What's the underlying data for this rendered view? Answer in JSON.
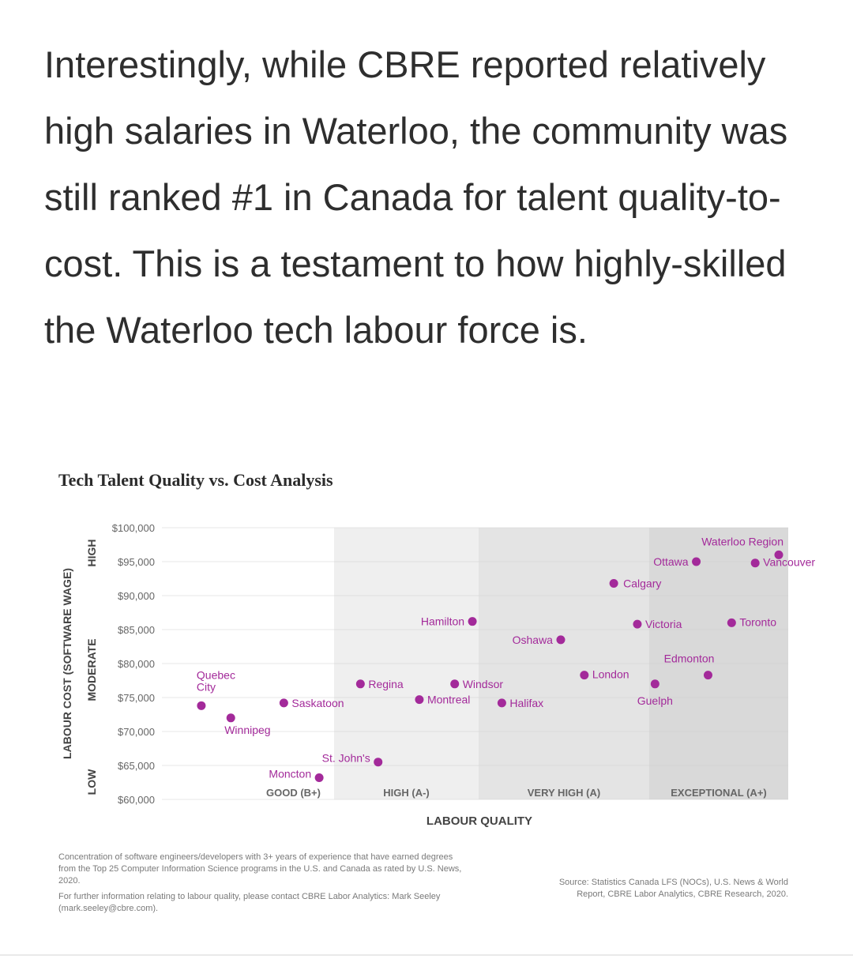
{
  "article": {
    "paragraph": "Interestingly, while CBRE reported relatively high salaries in Waterloo, the community was still ranked #1 in Canada for talent quality-to-cost. This is a testament to how highly-skilled the Waterloo tech labour force is."
  },
  "chart_data": {
    "type": "scatter",
    "title": "Tech Talent Quality vs. Cost Analysis",
    "xlabel": "LABOUR QUALITY",
    "ylabel": "LABOUR COST (SOFTWARE WAGE)",
    "x_categories": [
      "GOOD (B+)",
      "HIGH (A-)",
      "VERY HIGH (A)",
      "EXCEPTIONAL (A+)"
    ],
    "x_range": [
      0,
      10
    ],
    "y_tier_labels": [
      "HIGH",
      "MODERATE",
      "LOW"
    ],
    "y_ticks": [
      "$60,000",
      "$65,000",
      "$70,000",
      "$75,000",
      "$80,000",
      "$85,000",
      "$90,000",
      "$95,000",
      "$100,000"
    ],
    "ylim": [
      60000,
      100000
    ],
    "point_color": "#a32a9a",
    "points": [
      {
        "name": "Quebec City",
        "x": 0.2,
        "y": 73800
      },
      {
        "name": "Winnipeg",
        "x": 0.7,
        "y": 72000
      },
      {
        "name": "Saskatoon",
        "x": 1.6,
        "y": 74200
      },
      {
        "name": "Regina",
        "x": 2.9,
        "y": 77000
      },
      {
        "name": "Moncton",
        "x": 2.2,
        "y": 63200
      },
      {
        "name": "St. John's",
        "x": 3.2,
        "y": 65500
      },
      {
        "name": "Hamilton",
        "x": 4.8,
        "y": 86200
      },
      {
        "name": "Oshawa",
        "x": 6.3,
        "y": 83500
      },
      {
        "name": "Windsor",
        "x": 4.5,
        "y": 77000
      },
      {
        "name": "Montreal",
        "x": 3.9,
        "y": 74700
      },
      {
        "name": "Halifax",
        "x": 5.3,
        "y": 74200
      },
      {
        "name": "London",
        "x": 6.7,
        "y": 78300
      },
      {
        "name": "Calgary",
        "x": 7.2,
        "y": 91800
      },
      {
        "name": "Ottawa",
        "x": 8.6,
        "y": 95000
      },
      {
        "name": "Victoria",
        "x": 7.6,
        "y": 85800
      },
      {
        "name": "Guelph",
        "x": 7.9,
        "y": 77000
      },
      {
        "name": "Edmonton",
        "x": 8.8,
        "y": 78300
      },
      {
        "name": "Toronto",
        "x": 9.2,
        "y": 86000
      },
      {
        "name": "Vancouver",
        "x": 9.6,
        "y": 94800
      },
      {
        "name": "Waterloo Region",
        "x": 10.0,
        "y": 96000
      }
    ]
  },
  "footnotes": {
    "definition": "Concentration of software engineers/developers with 3+ years of experience that have earned degrees from the Top 25 Computer Information Science programs in the U.S. and Canada as rated by U.S. News, 2020.",
    "contact": "For further information relating to labour quality, please contact CBRE Labor Analytics: Mark Seeley (mark.seeley@cbre.com).",
    "source": "Source: Statistics Canada LFS (NOCs), U.S. News & World Report, CBRE Labor Analytics, CBRE Research, 2020."
  }
}
